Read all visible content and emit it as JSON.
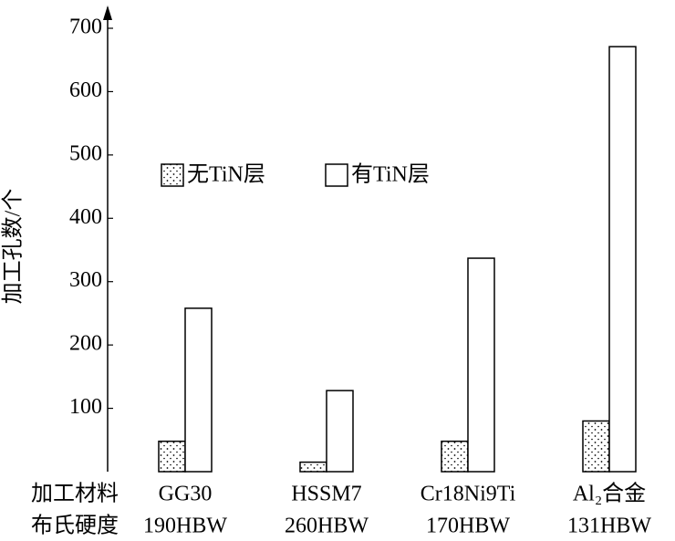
{
  "chart_data": {
    "type": "bar",
    "y_label": "加工孔数/个",
    "row_labels": [
      "加工材料",
      "布氏硬度"
    ],
    "categories": [
      "GG30",
      "HSSM7",
      "Cr18Ni9Ti",
      "Al₂合金"
    ],
    "hardness": [
      "190HBW",
      "260HBW",
      "170HBW",
      "131HBW"
    ],
    "series": [
      {
        "name": "无TiN层",
        "color": "dotted",
        "values": [
          48,
          15,
          48,
          80
        ]
      },
      {
        "name": "有TiN层",
        "color": "#ffffff",
        "values": [
          258,
          128,
          337,
          671
        ]
      }
    ],
    "ylim": [
      0,
      700
    ],
    "yticks": [
      100,
      200,
      300,
      400,
      500,
      600,
      700
    ]
  }
}
